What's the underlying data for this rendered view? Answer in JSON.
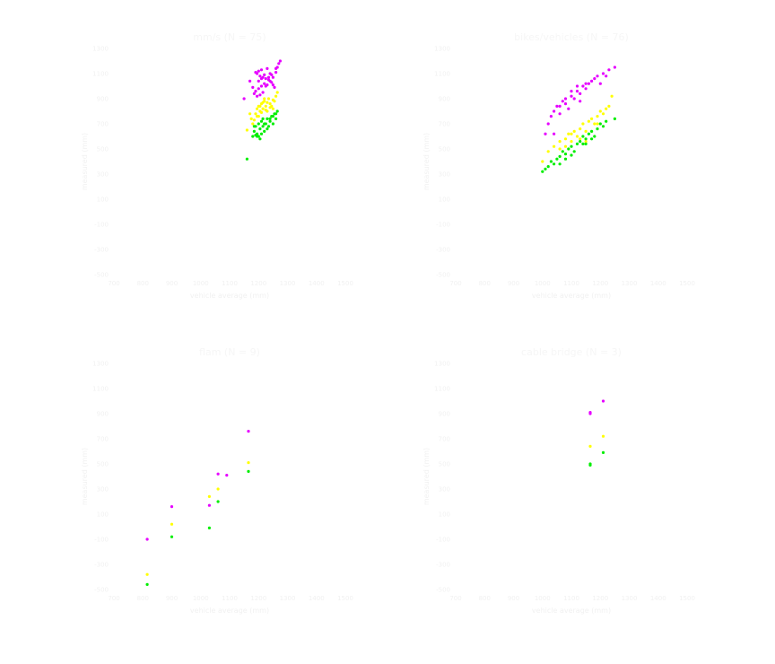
{
  "colors": {
    "high": "#e600ff",
    "mid": "#ffff00",
    "low": "#00ee00",
    "text": "#f2f2f2"
  },
  "chart_data": [
    {
      "type": "scatter",
      "title": "mm/s (N = 75)",
      "xlabel": "vehicle average (mm)",
      "ylabel": "measured (mm)",
      "xlim": [
        700,
        1500
      ],
      "ylim": [
        -500,
        1300
      ],
      "x_ticks": [
        "700",
        "800",
        "900",
        "1000",
        "1100",
        "1200",
        "1300",
        "1400",
        "1500"
      ],
      "y_ticks": [
        "1300",
        "1100",
        "900",
        "700",
        "500",
        "300",
        "100",
        "-100",
        "-300",
        "-500"
      ],
      "series": [
        {
          "color": "#e600ff",
          "points": [
            [
              1190,
              1110
            ],
            [
              1195,
              1100
            ],
            [
              1200,
              1120
            ],
            [
              1205,
              1080
            ],
            [
              1210,
              1130
            ],
            [
              1215,
              1070
            ],
            [
              1220,
              1090
            ],
            [
              1225,
              1060
            ],
            [
              1230,
              1140
            ],
            [
              1235,
              1050
            ],
            [
              1240,
              1100
            ],
            [
              1245,
              1030
            ],
            [
              1250,
              1010
            ],
            [
              1255,
              990
            ],
            [
              1230,
              1010
            ],
            [
              1220,
              1020
            ],
            [
              1210,
              1000
            ],
            [
              1200,
              980
            ],
            [
              1190,
              960
            ],
            [
              1200,
              1040
            ],
            [
              1210,
              1060
            ],
            [
              1225,
              1000
            ],
            [
              1240,
              1040
            ],
            [
              1250,
              1070
            ],
            [
              1260,
              1110
            ],
            [
              1265,
              1150
            ],
            [
              1270,
              1180
            ],
            [
              1275,
              1200
            ],
            [
              1260,
              1140
            ],
            [
              1245,
              1090
            ],
            [
              1235,
              1070
            ],
            [
              1215,
              950
            ],
            [
              1205,
              930
            ],
            [
              1195,
              920
            ],
            [
              1185,
              940
            ],
            [
              1180,
              990
            ],
            [
              1170,
              1040
            ],
            [
              1150,
              900
            ]
          ]
        },
        {
          "color": "#ffff00",
          "points": [
            [
              1190,
              780
            ],
            [
              1195,
              820
            ],
            [
              1200,
              840
            ],
            [
              1205,
              800
            ],
            [
              1210,
              860
            ],
            [
              1215,
              820
            ],
            [
              1220,
              880
            ],
            [
              1225,
              840
            ],
            [
              1230,
              800
            ],
            [
              1235,
              900
            ],
            [
              1240,
              860
            ],
            [
              1245,
              840
            ],
            [
              1250,
              820
            ],
            [
              1255,
              880
            ],
            [
              1260,
              920
            ],
            [
              1265,
              950
            ],
            [
              1200,
              760
            ],
            [
              1210,
              790
            ],
            [
              1220,
              900
            ],
            [
              1230,
              870
            ],
            [
              1240,
              830
            ],
            [
              1250,
              890
            ],
            [
              1225,
              810
            ],
            [
              1215,
              870
            ],
            [
              1205,
              840
            ],
            [
              1195,
              760
            ],
            [
              1185,
              730
            ],
            [
              1180,
              700
            ],
            [
              1175,
              740
            ],
            [
              1170,
              780
            ],
            [
              1160,
              650
            ]
          ]
        },
        {
          "color": "#00ee00",
          "points": [
            [
              1180,
              600
            ],
            [
              1185,
              640
            ],
            [
              1190,
              680
            ],
            [
              1195,
              620
            ],
            [
              1200,
              700
            ],
            [
              1205,
              660
            ],
            [
              1210,
              720
            ],
            [
              1215,
              680
            ],
            [
              1220,
              640
            ],
            [
              1225,
              700
            ],
            [
              1230,
              740
            ],
            [
              1235,
              680
            ],
            [
              1240,
              720
            ],
            [
              1245,
              760
            ],
            [
              1250,
              700
            ],
            [
              1255,
              780
            ],
            [
              1260,
              740
            ],
            [
              1265,
              800
            ],
            [
              1200,
              600
            ],
            [
              1210,
              620
            ],
            [
              1220,
              700
            ],
            [
              1230,
              660
            ],
            [
              1240,
              740
            ],
            [
              1250,
              760
            ],
            [
              1260,
              780
            ],
            [
              1215,
              740
            ],
            [
              1205,
              580
            ],
            [
              1195,
              600
            ],
            [
              1185,
              680
            ],
            [
              1190,
              610
            ],
            [
              1160,
              420
            ]
          ]
        }
      ]
    },
    {
      "type": "scatter",
      "title": "bikes/vehicles (N = 76)",
      "xlabel": "vehicle average (mm)",
      "ylabel": "measured (mm)",
      "xlim": [
        700,
        1500
      ],
      "ylim": [
        -500,
        1300
      ],
      "x_ticks": [
        "700",
        "800",
        "900",
        "1000",
        "1100",
        "1200",
        "1300",
        "1400",
        "1500"
      ],
      "y_ticks": [
        "1300",
        "1100",
        "900",
        "700",
        "500",
        "300",
        "100",
        "-100",
        "-300",
        "-500"
      ],
      "series": [
        {
          "color": "#e600ff",
          "points": [
            [
              1010,
              620
            ],
            [
              1020,
              700
            ],
            [
              1030,
              760
            ],
            [
              1040,
              800
            ],
            [
              1050,
              840
            ],
            [
              1060,
              780
            ],
            [
              1070,
              880
            ],
            [
              1080,
              860
            ],
            [
              1090,
              820
            ],
            [
              1100,
              920
            ],
            [
              1110,
              900
            ],
            [
              1120,
              960
            ],
            [
              1130,
              940
            ],
            [
              1140,
              1000
            ],
            [
              1150,
              980
            ],
            [
              1160,
              1020
            ],
            [
              1170,
              1040
            ],
            [
              1180,
              1060
            ],
            [
              1190,
              1080
            ],
            [
              1200,
              1020
            ],
            [
              1210,
              1100
            ],
            [
              1220,
              1080
            ],
            [
              1230,
              1130
            ],
            [
              1100,
              960
            ],
            [
              1120,
              1000
            ],
            [
              1150,
              1020
            ],
            [
              1080,
              900
            ],
            [
              1060,
              840
            ],
            [
              1130,
              880
            ],
            [
              1040,
              620
            ],
            [
              1250,
              1150
            ]
          ]
        },
        {
          "color": "#ffff00",
          "points": [
            [
              1000,
              400
            ],
            [
              1020,
              480
            ],
            [
              1040,
              520
            ],
            [
              1060,
              500
            ],
            [
              1080,
              580
            ],
            [
              1090,
              620
            ],
            [
              1100,
              560
            ],
            [
              1110,
              640
            ],
            [
              1120,
              600
            ],
            [
              1130,
              660
            ],
            [
              1140,
              700
            ],
            [
              1150,
              640
            ],
            [
              1160,
              720
            ],
            [
              1170,
              740
            ],
            [
              1180,
              700
            ],
            [
              1190,
              760
            ],
            [
              1200,
              800
            ],
            [
              1210,
              780
            ],
            [
              1220,
              820
            ],
            [
              1230,
              840
            ],
            [
              1150,
              560
            ],
            [
              1130,
              580
            ],
            [
              1100,
              620
            ],
            [
              1080,
              520
            ],
            [
              1060,
              560
            ],
            [
              1190,
              700
            ],
            [
              1240,
              920
            ]
          ]
        },
        {
          "color": "#00ee00",
          "points": [
            [
              1000,
              320
            ],
            [
              1010,
              340
            ],
            [
              1020,
              360
            ],
            [
              1030,
              400
            ],
            [
              1040,
              380
            ],
            [
              1050,
              420
            ],
            [
              1060,
              440
            ],
            [
              1070,
              480
            ],
            [
              1080,
              460
            ],
            [
              1090,
              500
            ],
            [
              1100,
              520
            ],
            [
              1110,
              480
            ],
            [
              1120,
              540
            ],
            [
              1130,
              560
            ],
            [
              1140,
              600
            ],
            [
              1150,
              580
            ],
            [
              1160,
              620
            ],
            [
              1170,
              640
            ],
            [
              1180,
              600
            ],
            [
              1190,
              660
            ],
            [
              1200,
              700
            ],
            [
              1210,
              680
            ],
            [
              1220,
              720
            ],
            [
              1100,
              450
            ],
            [
              1080,
              420
            ],
            [
              1150,
              540
            ],
            [
              1170,
              580
            ],
            [
              1140,
              540
            ],
            [
              1060,
              380
            ],
            [
              1250,
              740
            ]
          ]
        }
      ]
    },
    {
      "type": "scatter",
      "title": "flam (N = 9)",
      "xlabel": "vehicle average (mm)",
      "ylabel": "measured (mm)",
      "xlim": [
        700,
        1500
      ],
      "ylim": [
        -500,
        1300
      ],
      "x_ticks": [
        "700",
        "800",
        "900",
        "1000",
        "1100",
        "1200",
        "1300",
        "1400",
        "1500"
      ],
      "y_ticks": [
        "1300",
        "1100",
        "900",
        "700",
        "500",
        "300",
        "100",
        "-100",
        "-300",
        "-500"
      ],
      "series": [
        {
          "color": "#e600ff",
          "points": [
            [
              815,
              -100
            ],
            [
              900,
              160
            ],
            [
              1030,
              170
            ],
            [
              1060,
              420
            ],
            [
              1090,
              410
            ],
            [
              1165,
              760
            ]
          ]
        },
        {
          "color": "#ffff00",
          "points": [
            [
              815,
              -380
            ],
            [
              900,
              20
            ],
            [
              1030,
              240
            ],
            [
              1060,
              300
            ],
            [
              1165,
              510
            ]
          ]
        },
        {
          "color": "#00ee00",
          "points": [
            [
              815,
              -460
            ],
            [
              900,
              -80
            ],
            [
              1030,
              -10
            ],
            [
              1060,
              200
            ],
            [
              1165,
              440
            ]
          ]
        }
      ]
    },
    {
      "type": "scatter",
      "title": "cable bridge (N = 3)",
      "xlabel": "vehicle average (mm)",
      "ylabel": "measured (mm)",
      "xlim": [
        700,
        1500
      ],
      "ylim": [
        -500,
        1300
      ],
      "x_ticks": [
        "700",
        "800",
        "900",
        "1000",
        "1100",
        "1200",
        "1300",
        "1400",
        "1500"
      ],
      "y_ticks": [
        "1300",
        "1100",
        "900",
        "700",
        "500",
        "300",
        "100",
        "-100",
        "-300",
        "-500"
      ],
      "series": [
        {
          "color": "#e600ff",
          "points": [
            [
              1165,
              910
            ],
            [
              1165,
              900
            ],
            [
              1210,
              1000
            ]
          ]
        },
        {
          "color": "#ffff00",
          "points": [
            [
              1165,
              640
            ],
            [
              1210,
              720
            ]
          ]
        },
        {
          "color": "#00ee00",
          "points": [
            [
              1165,
              500
            ],
            [
              1165,
              490
            ],
            [
              1210,
              590
            ]
          ]
        }
      ]
    }
  ]
}
